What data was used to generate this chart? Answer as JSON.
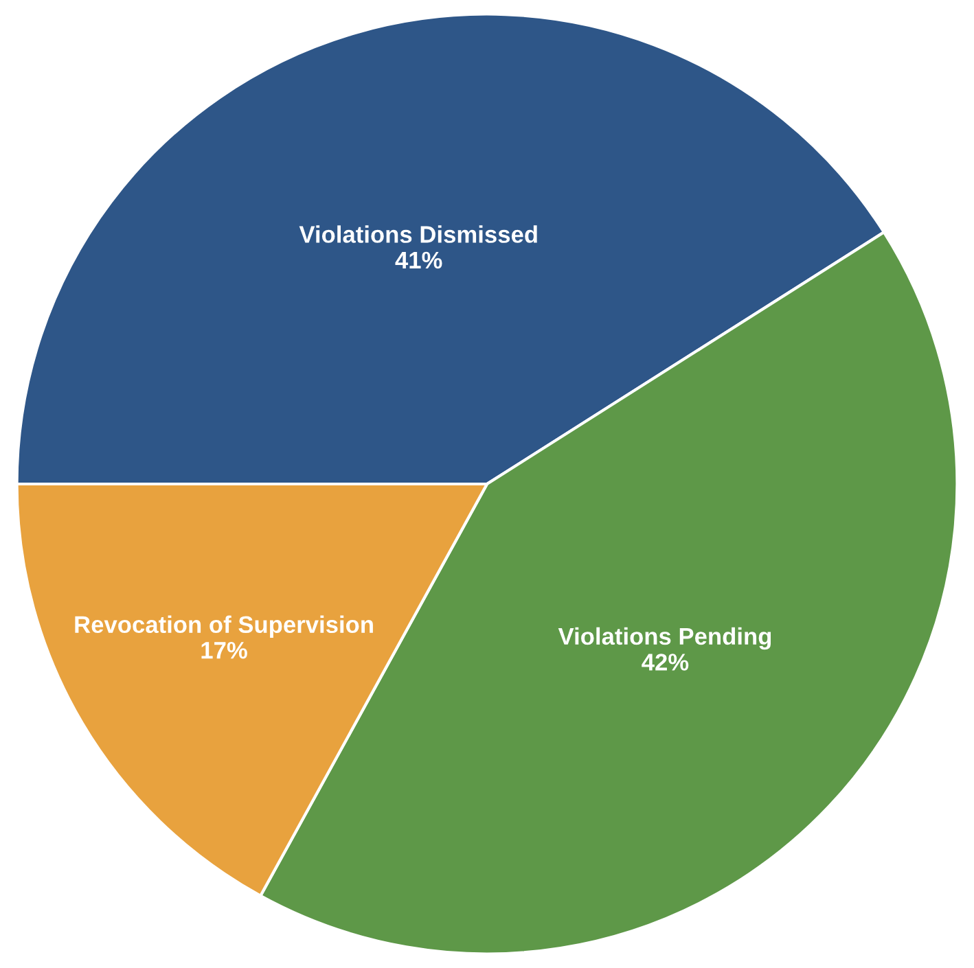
{
  "chart_data": {
    "type": "pie",
    "categories": [
      "Violations Dismissed",
      "Violations Pending",
      "Revocation of Supervision"
    ],
    "values": [
      41,
      42,
      17
    ],
    "value_labels": [
      "41%",
      "42%",
      "17%"
    ],
    "colors": [
      "#2e5688",
      "#5e9848",
      "#e8a23e"
    ]
  }
}
